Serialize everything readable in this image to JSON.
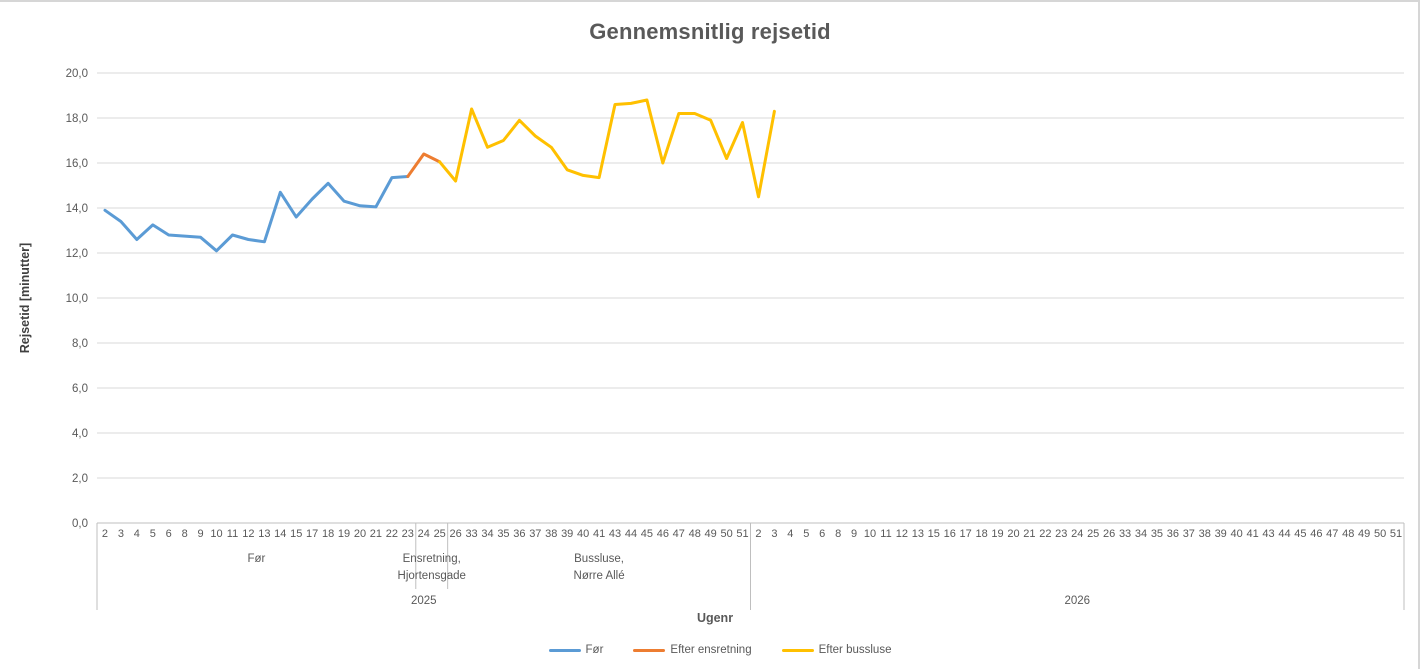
{
  "chart_data": {
    "type": "line",
    "title": "Gennemsnitlig rejsetid",
    "ylabel": "Rejsetid [minutter]",
    "xlabel": "Ugenr",
    "ylim": [
      0,
      20
    ],
    "yticks": [
      0,
      2,
      4,
      6,
      8,
      10,
      12,
      14,
      16,
      18,
      20
    ],
    "ytick_labels": [
      "0,0",
      "2,0",
      "4,0",
      "6,0",
      "8,0",
      "10,0",
      "12,0",
      "14,0",
      "16,0",
      "18,0",
      "20,0"
    ],
    "grid": true,
    "legend_position": "bottom",
    "colors": {
      "text": "#595959",
      "gridline": "#d9d9d9",
      "axis": "#bfbfbf"
    },
    "x_groups": [
      {
        "year": "2025",
        "weeks": [
          2,
          3,
          4,
          5,
          6,
          8,
          9,
          10,
          11,
          12,
          13,
          14,
          15,
          17,
          18,
          19,
          20,
          21,
          22,
          23,
          24,
          25,
          26,
          33,
          34,
          35,
          36,
          37,
          38,
          39,
          40,
          41,
          43,
          44,
          45,
          46,
          47,
          48,
          49,
          50,
          51
        ]
      },
      {
        "year": "2026",
        "weeks": [
          2,
          3,
          4,
          5,
          6,
          8,
          9,
          10,
          11,
          12,
          13,
          15,
          16,
          17,
          18,
          19,
          20,
          21,
          22,
          23,
          24,
          25,
          26,
          33,
          34,
          35,
          36,
          37,
          38,
          39,
          40,
          41,
          43,
          44,
          45,
          46,
          47,
          48,
          49,
          50,
          51
        ]
      }
    ],
    "phases": [
      {
        "label_lines": [
          "Før"
        ],
        "year": "2025",
        "from_week": 2,
        "to_week": 23
      },
      {
        "label_lines": [
          "Ensretning,",
          "Hjortensgade"
        ],
        "year": "2025",
        "from_week": 24,
        "to_week": 25
      },
      {
        "label_lines": [
          "Bussluse,",
          "Nørre Allé"
        ],
        "year": "2025",
        "from_week": 26,
        "to_week": 51
      }
    ],
    "series": [
      {
        "name": "Før",
        "color": "#5B9BD5",
        "points": [
          [
            "2025",
            2,
            13.9
          ],
          [
            "2025",
            3,
            13.4
          ],
          [
            "2025",
            4,
            12.6
          ],
          [
            "2025",
            5,
            13.25
          ],
          [
            "2025",
            6,
            12.8
          ],
          [
            "2025",
            8,
            12.75
          ],
          [
            "2025",
            9,
            12.7
          ],
          [
            "2025",
            10,
            12.1
          ],
          [
            "2025",
            11,
            12.8
          ],
          [
            "2025",
            12,
            12.6
          ],
          [
            "2025",
            13,
            12.5
          ],
          [
            "2025",
            14,
            14.7
          ],
          [
            "2025",
            15,
            13.6
          ],
          [
            "2025",
            17,
            14.4
          ],
          [
            "2025",
            18,
            15.1
          ],
          [
            "2025",
            19,
            14.3
          ],
          [
            "2025",
            20,
            14.1
          ],
          [
            "2025",
            21,
            14.05
          ],
          [
            "2025",
            22,
            15.35
          ],
          [
            "2025",
            23,
            15.4
          ]
        ]
      },
      {
        "name": "Efter ensretning",
        "color": "#ED7D31",
        "points": [
          [
            "2025",
            23,
            15.4
          ],
          [
            "2025",
            24,
            16.4
          ],
          [
            "2025",
            25,
            16.05
          ]
        ]
      },
      {
        "name": "Efter bussluse",
        "color": "#FFC000",
        "points": [
          [
            "2025",
            25,
            16.05
          ],
          [
            "2025",
            26,
            15.2
          ],
          [
            "2025",
            33,
            18.4
          ],
          [
            "2025",
            34,
            16.7
          ],
          [
            "2025",
            35,
            17.0
          ],
          [
            "2025",
            36,
            17.9
          ],
          [
            "2025",
            37,
            17.2
          ],
          [
            "2025",
            38,
            16.7
          ],
          [
            "2025",
            39,
            15.7
          ],
          [
            "2025",
            40,
            15.45
          ],
          [
            "2025",
            41,
            15.35
          ],
          [
            "2025",
            43,
            18.6
          ],
          [
            "2025",
            44,
            18.65
          ],
          [
            "2025",
            45,
            18.8
          ],
          [
            "2025",
            46,
            16.0
          ],
          [
            "2025",
            47,
            18.2
          ],
          [
            "2025",
            48,
            18.2
          ],
          [
            "2025",
            49,
            17.9
          ],
          [
            "2025",
            50,
            16.2
          ],
          [
            "2025",
            51,
            17.8
          ],
          [
            "2026",
            2,
            14.5
          ],
          [
            "2026",
            3,
            18.3
          ]
        ]
      }
    ]
  }
}
